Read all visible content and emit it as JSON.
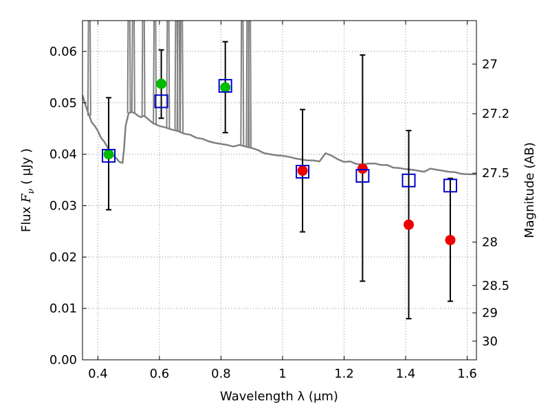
{
  "chart_data": {
    "type": "scatter",
    "xlabel": "Wavelength  λ (μm)",
    "ylabel": "Flux  F_ν  ( μJy )",
    "ylabel_parts": {
      "prefix": "Flux  ",
      "symbol": "F",
      "subscript": "ν",
      "suffix": "  ( μJy )"
    },
    "y2label": "Magnitude (AB)",
    "xlim": [
      0.35,
      1.63
    ],
    "ylim": [
      0.0,
      0.066
    ],
    "grid": true,
    "x_ticks": [
      0.4,
      0.6,
      0.8,
      1.0,
      1.2,
      1.4,
      1.6
    ],
    "x_tick_labels": [
      "0.4",
      "0.6",
      "0.8",
      "1",
      "1.2",
      "1.4",
      "1.6"
    ],
    "y_ticks": [
      0.0,
      0.01,
      0.02,
      0.03,
      0.04,
      0.05,
      0.06
    ],
    "y_tick_labels": [
      "0.00",
      "0.01",
      "0.02",
      "0.03",
      "0.04",
      "0.05",
      "0.06"
    ],
    "y2_ticks": [
      27,
      27.2,
      27.5,
      28,
      28.5,
      29,
      30
    ],
    "y2_tick_labels": [
      "27",
      "27.2",
      "27.5",
      "28",
      "28.5",
      "29",
      "30"
    ],
    "model_spectrum": {
      "color": "#808080",
      "points": [
        [
          0.35,
          0.0515
        ],
        [
          0.36,
          0.0495
        ],
        [
          0.37,
          0.0478
        ],
        [
          0.38,
          0.0462
        ],
        [
          0.39,
          0.0455
        ],
        [
          0.4,
          0.0445
        ],
        [
          0.41,
          0.0432
        ],
        [
          0.42,
          0.0425
        ],
        [
          0.43,
          0.0415
        ],
        [
          0.44,
          0.0405
        ],
        [
          0.45,
          0.0398
        ],
        [
          0.46,
          0.0392
        ],
        [
          0.47,
          0.0385
        ],
        [
          0.48,
          0.0383
        ],
        [
          0.485,
          0.041
        ],
        [
          0.49,
          0.0455
        ],
        [
          0.5,
          0.048
        ],
        [
          0.51,
          0.0482
        ],
        [
          0.52,
          0.048
        ],
        [
          0.53,
          0.0475
        ],
        [
          0.54,
          0.0472
        ],
        [
          0.55,
          0.0475
        ],
        [
          0.56,
          0.047
        ],
        [
          0.57,
          0.0465
        ],
        [
          0.58,
          0.046
        ],
        [
          0.6,
          0.0455
        ],
        [
          0.62,
          0.0452
        ],
        [
          0.64,
          0.0448
        ],
        [
          0.66,
          0.0445
        ],
        [
          0.68,
          0.044
        ],
        [
          0.7,
          0.0438
        ],
        [
          0.72,
          0.0432
        ],
        [
          0.74,
          0.043
        ],
        [
          0.76,
          0.0425
        ],
        [
          0.78,
          0.0422
        ],
        [
          0.8,
          0.042
        ],
        [
          0.82,
          0.0418
        ],
        [
          0.84,
          0.0415
        ],
        [
          0.86,
          0.0418
        ],
        [
          0.88,
          0.0415
        ],
        [
          0.9,
          0.0412
        ],
        [
          0.92,
          0.0408
        ],
        [
          0.94,
          0.0402
        ],
        [
          0.96,
          0.04
        ],
        [
          0.98,
          0.0398
        ],
        [
          1.0,
          0.0397
        ],
        [
          1.02,
          0.0395
        ],
        [
          1.04,
          0.0392
        ],
        [
          1.06,
          0.039
        ],
        [
          1.08,
          0.0388
        ],
        [
          1.1,
          0.0388
        ],
        [
          1.12,
          0.0386
        ],
        [
          1.14,
          0.0402
        ],
        [
          1.16,
          0.0397
        ],
        [
          1.18,
          0.039
        ],
        [
          1.2,
          0.0385
        ],
        [
          1.22,
          0.0386
        ],
        [
          1.24,
          0.0381
        ],
        [
          1.26,
          0.038
        ],
        [
          1.28,
          0.0382
        ],
        [
          1.3,
          0.0382
        ],
        [
          1.32,
          0.0379
        ],
        [
          1.34,
          0.0379
        ],
        [
          1.36,
          0.0374
        ],
        [
          1.38,
          0.0373
        ],
        [
          1.4,
          0.0371
        ],
        [
          1.42,
          0.037
        ],
        [
          1.44,
          0.0368
        ],
        [
          1.46,
          0.0366
        ],
        [
          1.48,
          0.0372
        ],
        [
          1.5,
          0.037
        ],
        [
          1.52,
          0.0368
        ],
        [
          1.54,
          0.0366
        ],
        [
          1.56,
          0.0365
        ],
        [
          1.58,
          0.0362
        ],
        [
          1.6,
          0.0361
        ],
        [
          1.63,
          0.0361
        ]
      ],
      "spikes": [
        {
          "x": 0.372,
          "y": 0.08
        },
        {
          "x": 0.501,
          "y": 0.08
        },
        {
          "x": 0.515,
          "y": 0.08
        },
        {
          "x": 0.548,
          "y": 0.08
        },
        {
          "x": 0.585,
          "y": 0.08
        },
        {
          "x": 0.628,
          "y": 0.08
        },
        {
          "x": 0.655,
          "y": 0.08
        },
        {
          "x": 0.662,
          "y": 0.08
        },
        {
          "x": 0.672,
          "y": 0.08
        },
        {
          "x": 0.869,
          "y": 0.08
        },
        {
          "x": 0.887,
          "y": 0.08
        },
        {
          "x": 0.893,
          "y": 0.08
        }
      ]
    },
    "model_photometry": {
      "marker": "open-square",
      "color": "#0000cc",
      "points": [
        {
          "x": 0.435,
          "y": 0.0397
        },
        {
          "x": 0.606,
          "y": 0.0503
        },
        {
          "x": 0.814,
          "y": 0.0533
        },
        {
          "x": 1.065,
          "y": 0.0366
        },
        {
          "x": 1.26,
          "y": 0.0358
        },
        {
          "x": 1.41,
          "y": 0.0349
        },
        {
          "x": 1.545,
          "y": 0.0339
        }
      ]
    },
    "observed_detections": {
      "marker": "filled-circle",
      "color": "#00bb00",
      "points": [
        {
          "x": 0.435,
          "y": 0.04,
          "yerr_low": 0.0292,
          "yerr_high": 0.051
        },
        {
          "x": 0.606,
          "y": 0.0537,
          "yerr_low": 0.047,
          "yerr_high": 0.0603
        },
        {
          "x": 0.814,
          "y": 0.053,
          "yerr_low": 0.0442,
          "yerr_high": 0.0619
        }
      ]
    },
    "observed_nir": {
      "marker": "filled-circle",
      "color": "#ee0000",
      "points": [
        {
          "x": 1.065,
          "y": 0.0368,
          "yerr_low": 0.0249,
          "yerr_high": 0.0487
        },
        {
          "x": 1.26,
          "y": 0.0372,
          "yerr_low": 0.0153,
          "yerr_high": 0.0593
        },
        {
          "x": 1.41,
          "y": 0.0263,
          "yerr_low": 0.008,
          "yerr_high": 0.0446
        },
        {
          "x": 1.545,
          "y": 0.0233,
          "yerr_low": 0.0114,
          "yerr_high": 0.0353
        }
      ]
    }
  }
}
